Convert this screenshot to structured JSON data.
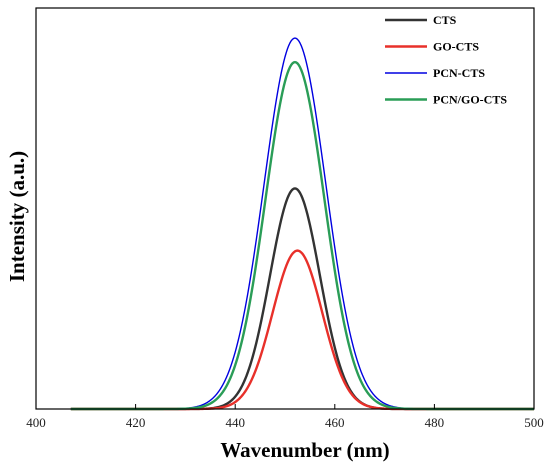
{
  "chart_data": {
    "type": "line",
    "xlabel": "Wavenumber (nm)",
    "ylabel": "Intensity (a.u.)",
    "xlim": [
      400,
      500
    ],
    "ylim": [
      0,
      1
    ],
    "x_ticks": [
      "400",
      "420",
      "440",
      "460",
      "480",
      "500"
    ],
    "y_ticks_shown": false,
    "grid": false,
    "legend": "top-right",
    "series": [
      {
        "name": "CTS",
        "color": "#333333",
        "peak_x": 452,
        "peak_y": 0.55,
        "sigma": 5.0
      },
      {
        "name": "GO-CTS",
        "color": "#e8302a",
        "peak_x": 452.5,
        "peak_y": 0.395,
        "sigma": 5.0
      },
      {
        "name": "PCN-CTS",
        "color": "#0000e0",
        "peak_x": 452,
        "peak_y": 0.925,
        "sigma": 6.2
      },
      {
        "name": "PCN/GO-CTS",
        "color": "#2a9d57",
        "peak_x": 452,
        "peak_y": 0.865,
        "sigma": 5.9
      }
    ]
  }
}
